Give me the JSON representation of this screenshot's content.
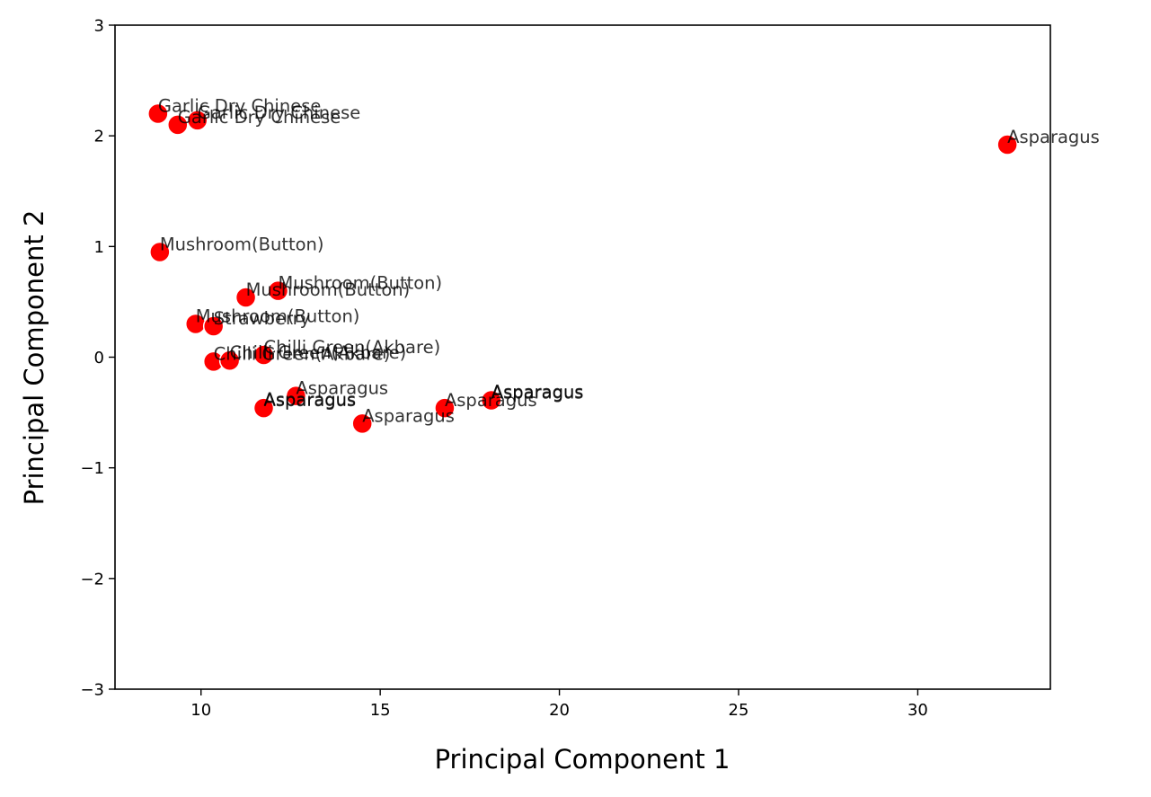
{
  "chart_data": {
    "type": "scatter",
    "title": "",
    "xlabel": "Principal Component 1",
    "ylabel": "Principal Component 2",
    "xlim": [
      7.6,
      33.7
    ],
    "ylim": [
      -3,
      3
    ],
    "xticks": [
      10,
      15,
      20,
      25,
      30
    ],
    "yticks": [
      -3,
      -2,
      -1,
      0,
      1,
      2,
      3
    ],
    "grid": false,
    "marker_color": "#ff0000",
    "marker_edge_color": "#ffffff",
    "label_color": "#000000",
    "points": [
      {
        "x": 8.8,
        "y": 2.2,
        "label": "Garlic Dry Chinese"
      },
      {
        "x": 9.35,
        "y": 2.1,
        "label": "Garlic Dry Chinese"
      },
      {
        "x": 9.9,
        "y": 2.14,
        "label": "Garlic Dry Chinese"
      },
      {
        "x": 32.5,
        "y": 1.92,
        "label": "Asparagus"
      },
      {
        "x": 8.85,
        "y": 0.95,
        "label": "Mushroom(Button)"
      },
      {
        "x": 12.15,
        "y": 0.6,
        "label": "Mushroom(Button)"
      },
      {
        "x": 11.25,
        "y": 0.54,
        "label": "Mushroom(Button)"
      },
      {
        "x": 9.85,
        "y": 0.3,
        "label": "Mushroom(Button)"
      },
      {
        "x": 10.35,
        "y": 0.28,
        "label": "Strawberry"
      },
      {
        "x": 11.75,
        "y": 0.02,
        "label": "Chilli Green(Akbare)"
      },
      {
        "x": 10.35,
        "y": -0.04,
        "label": "Chilli Green(Akbare)"
      },
      {
        "x": 10.8,
        "y": -0.03,
        "label": "Chilli Green(Akbare)"
      },
      {
        "x": 12.65,
        "y": -0.35,
        "label": "Asparagus"
      },
      {
        "x": 11.75,
        "y": -0.45,
        "label": "Asparagus"
      },
      {
        "x": 11.75,
        "y": -0.46,
        "label": "Asparagus"
      },
      {
        "x": 14.5,
        "y": -0.6,
        "label": "Asparagus"
      },
      {
        "x": 16.8,
        "y": -0.46,
        "label": "Asparagus"
      },
      {
        "x": 18.1,
        "y": -0.38,
        "label": "Asparagus"
      },
      {
        "x": 18.1,
        "y": -0.39,
        "label": "Asparagus"
      }
    ]
  }
}
